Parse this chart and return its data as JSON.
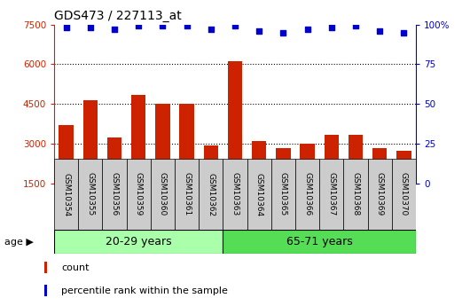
{
  "title": "GDS473 / 227113_at",
  "samples": [
    "GSM10354",
    "GSM10355",
    "GSM10356",
    "GSM10359",
    "GSM10360",
    "GSM10361",
    "GSM10362",
    "GSM10363",
    "GSM10364",
    "GSM10365",
    "GSM10366",
    "GSM10367",
    "GSM10368",
    "GSM10369",
    "GSM10370"
  ],
  "counts": [
    3700,
    4650,
    3250,
    4850,
    4500,
    4500,
    2950,
    6100,
    3100,
    2850,
    3000,
    3350,
    3350,
    2850,
    2750
  ],
  "percentiles": [
    98,
    98,
    97,
    99,
    99,
    99,
    97,
    99,
    96,
    95,
    97,
    98,
    99,
    96,
    95
  ],
  "group1_label": "20-29 years",
  "group2_label": "65-71 years",
  "group1_count": 7,
  "group2_count": 8,
  "bar_color": "#cc2200",
  "dot_color": "#0000cc",
  "ylim_left": [
    1500,
    7500
  ],
  "ylim_right": [
    0,
    100
  ],
  "yticks_left": [
    1500,
    3000,
    4500,
    6000,
    7500
  ],
  "yticks_right": [
    0,
    25,
    50,
    75,
    100
  ],
  "grid_color": "#000000",
  "plot_bg": "#ffffff",
  "tick_cell_bg": "#cccccc",
  "group_bg1": "#aaffaa",
  "group_bg2": "#55dd55",
  "legend_count_label": "count",
  "legend_pct_label": "percentile rank within the sample",
  "age_label": "age"
}
